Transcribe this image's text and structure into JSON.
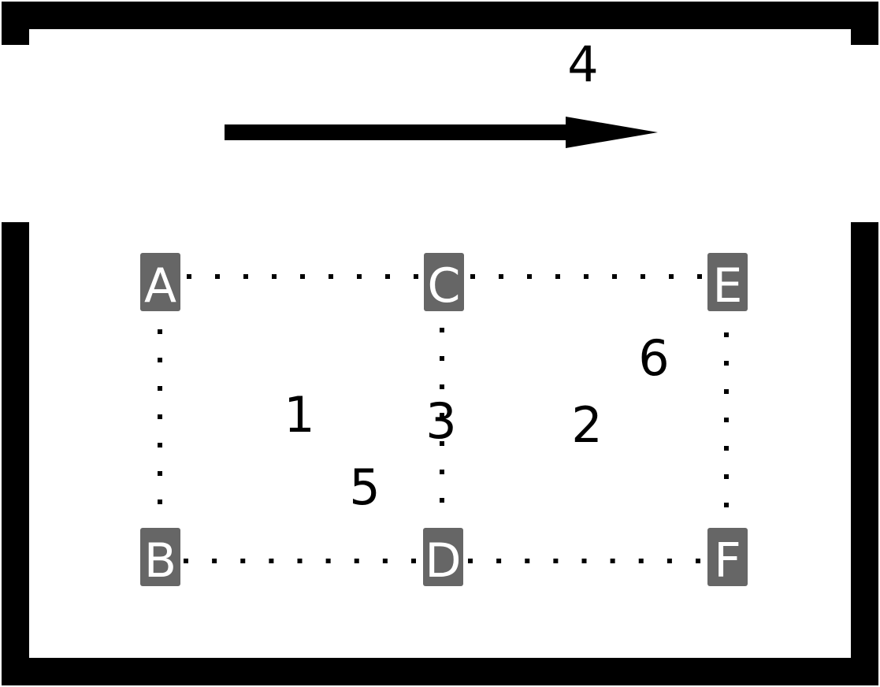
{
  "diagram": {
    "arrow_label": "4",
    "nodes": [
      {
        "id": "A",
        "label": "A"
      },
      {
        "id": "B",
        "label": "B"
      },
      {
        "id": "C",
        "label": "C"
      },
      {
        "id": "D",
        "label": "D"
      },
      {
        "id": "E",
        "label": "E"
      },
      {
        "id": "F",
        "label": "F"
      }
    ],
    "region_numbers": [
      "1",
      "2",
      "3",
      "5",
      "6"
    ],
    "colors": {
      "wall": "#000000",
      "node_fill": "#666666",
      "node_text": "#ffffff",
      "dotted_line": "#000000"
    }
  }
}
